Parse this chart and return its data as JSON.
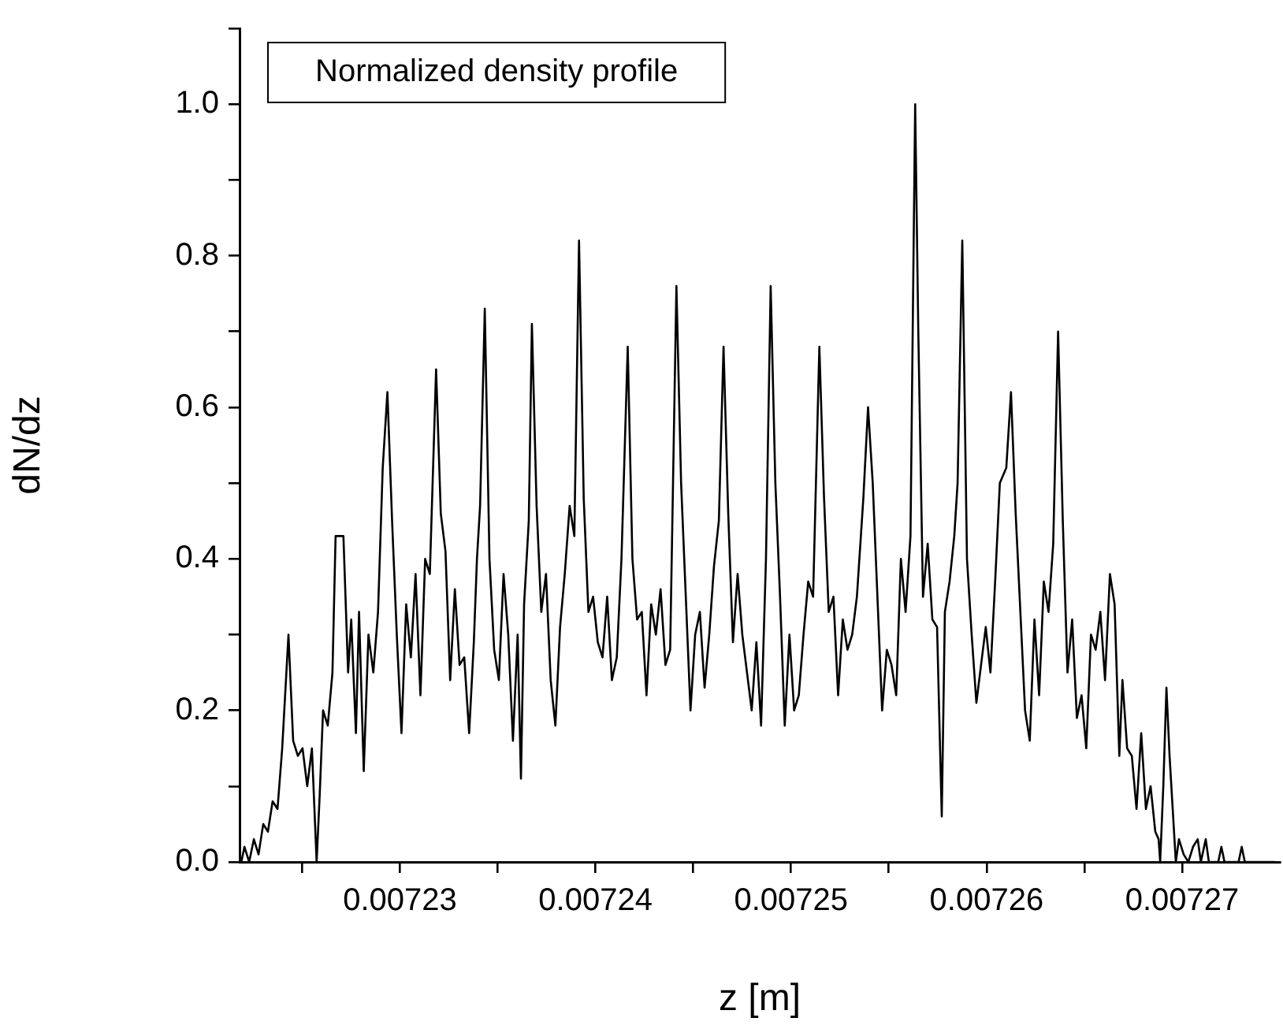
{
  "chart_data": {
    "type": "line",
    "xlabel": "z [m]",
    "ylabel": "dN/dz",
    "legend": "top left",
    "marker": "none",
    "line_style": "solid",
    "grid": false,
    "xlim": [
      0.0072218,
      0.007275
    ],
    "xticks": [
      {
        "value": 0.007225,
        "label": null
      },
      0.00723,
      {
        "value": 0.007235,
        "label": null
      },
      0.00724,
      {
        "value": 0.007245,
        "label": null
      },
      0.00725,
      {
        "value": 0.007255,
        "label": null
      },
      0.00726,
      {
        "value": 0.007265,
        "label": null
      },
      0.00727
    ],
    "ylim": [
      0,
      1.1
    ],
    "yticks": [
      {
        "value": 0,
        "label": "0.0"
      },
      {
        "value": 0.1,
        "label": null
      },
      {
        "value": 0.2,
        "label": "0.2"
      },
      {
        "value": 0.3,
        "label": null
      },
      {
        "value": 0.4,
        "label": "0.4"
      },
      {
        "value": 0.5,
        "label": null
      },
      {
        "value": 0.6,
        "label": "0.6"
      },
      {
        "value": 0.7,
        "label": null
      },
      {
        "value": 0.8,
        "label": "0.8"
      },
      {
        "value": 0.9,
        "label": null
      },
      {
        "value": 1,
        "label": "1.0"
      },
      {
        "value": 1.1,
        "label": null
      }
    ],
    "series": [
      {
        "name": "Normalized density profile",
        "color": "#000000",
        "x": [
          0.00722189,
          0.00722205,
          0.00722229,
          0.00722253,
          0.00722277,
          0.00722301,
          0.00722325,
          0.00722349,
          0.00722374,
          0.00722398,
          0.0072243,
          0.00722454,
          0.00722478,
          0.00722502,
          0.00722526,
          0.0072255,
          0.00722574,
          0.0072259,
          0.00722607,
          0.00722631,
          0.00722655,
          0.00722671,
          0.00722711,
          0.00722735,
          0.00722751,
          0.00722775,
          0.00722791,
          0.00722815,
          0.00722839,
          0.00722864,
          0.00722888,
          0.00722912,
          0.00722936,
          0.0072296,
          0.00722984,
          0.00723008,
          0.00723032,
          0.00723056,
          0.0072308,
          0.00723105,
          0.00723129,
          0.00723153,
          0.00723185,
          0.00723209,
          0.00723233,
          0.00723257,
          0.00723281,
          0.00723305,
          0.00723329,
          0.00723354,
          0.00723378,
          0.00723394,
          0.0072341,
          0.00723434,
          0.00723458,
          0.00723482,
          0.00723506,
          0.0072353,
          0.00723554,
          0.00723578,
          0.00723602,
          0.00723619,
          0.00723635,
          0.00723659,
          0.00723675,
          0.00723699,
          0.00723723,
          0.00723747,
          0.00723771,
          0.00723795,
          0.00723819,
          0.00723843,
          0.00723868,
          0.00723892,
          0.00723916,
          0.0072394,
          0.00723964,
          0.00723988,
          0.00724012,
          0.00724036,
          0.0072406,
          0.00724084,
          0.00724109,
          0.00724133,
          0.00724165,
          0.00724189,
          0.00724213,
          0.00724237,
          0.00724261,
          0.00724285,
          0.00724309,
          0.00724333,
          0.00724358,
          0.00724382,
          0.00724414,
          0.00724438,
          0.00724462,
          0.00724486,
          0.0072451,
          0.00724534,
          0.00724558,
          0.00724582,
          0.00724606,
          0.00724631,
          0.00724655,
          0.00724679,
          0.00724703,
          0.00724727,
          0.00724751,
          0.00724775,
          0.00724799,
          0.00724823,
          0.00724847,
          0.00724872,
          0.00724896,
          0.0072492,
          0.00724944,
          0.00724968,
          0.00724992,
          0.00725016,
          0.0072504,
          0.00725064,
          0.00725088,
          0.00725113,
          0.00725145,
          0.00725169,
          0.00725193,
          0.00725217,
          0.00725241,
          0.00725265,
          0.00725289,
          0.00725313,
          0.00725337,
          0.0072537,
          0.00725394,
          0.00725418,
          0.00725442,
          0.00725466,
          0.0072549,
          0.00725514,
          0.00725538,
          0.00725562,
          0.00725586,
          0.00725611,
          0.00725635,
          0.00725651,
          0.00725675,
          0.00725699,
          0.00725723,
          0.00725747,
          0.00725771,
          0.00725787,
          0.00725811,
          0.00725835,
          0.00725852,
          0.00725876,
          0.007259,
          0.00725924,
          0.00725948,
          0.00725972,
          0.00725996,
          0.0072602,
          0.00726044,
          0.00726068,
          0.00726101,
          0.00726125,
          0.00726149,
          0.00726173,
          0.00726197,
          0.00726221,
          0.00726245,
          0.00726269,
          0.00726293,
          0.00726317,
          0.00726341,
          0.00726366,
          0.0072639,
          0.00726414,
          0.00726438,
          0.00726462,
          0.00726486,
          0.0072651,
          0.00726534,
          0.00726558,
          0.00726582,
          0.00726606,
          0.00726631,
          0.00726655,
          0.00726679,
          0.00726695,
          0.00726719,
          0.00726743,
          0.00726767,
          0.00726791,
          0.00726815,
          0.00726839,
          0.00726863,
          0.0072688,
          0.00726888,
          0.00726904,
          0.0072692,
          0.00726936,
          0.00726952,
          0.00726968,
          0.00726984,
          0.00727008,
          0.00727032,
          0.00727056,
          0.0072708,
          0.00727096,
          0.00727121,
          0.00727137,
          0.00727185,
          0.00727201,
          0.00727217,
          0.00727289,
          0.00727305,
          0.00727321,
          0.00727474
        ],
        "values": [
          0,
          0.02,
          0,
          0.03,
          0.01,
          0.05,
          0.04,
          0.08,
          0.07,
          0.15,
          0.3,
          0.16,
          0.14,
          0.15,
          0.1,
          0.15,
          0,
          0.09,
          0.2,
          0.18,
          0.25,
          0.43,
          0.43,
          0.25,
          0.32,
          0.17,
          0.33,
          0.12,
          0.3,
          0.25,
          0.33,
          0.52,
          0.62,
          0.45,
          0.3,
          0.17,
          0.34,
          0.27,
          0.38,
          0.22,
          0.4,
          0.38,
          0.65,
          0.46,
          0.41,
          0.24,
          0.36,
          0.26,
          0.27,
          0.17,
          0.29,
          0.4,
          0.47,
          0.73,
          0.4,
          0.28,
          0.24,
          0.38,
          0.3,
          0.16,
          0.3,
          0.11,
          0.34,
          0.45,
          0.71,
          0.47,
          0.33,
          0.38,
          0.24,
          0.18,
          0.31,
          0.38,
          0.47,
          0.43,
          0.82,
          0.48,
          0.33,
          0.35,
          0.29,
          0.27,
          0.35,
          0.24,
          0.27,
          0.4,
          0.68,
          0.4,
          0.32,
          0.33,
          0.22,
          0.34,
          0.3,
          0.36,
          0.26,
          0.28,
          0.76,
          0.5,
          0.35,
          0.2,
          0.3,
          0.33,
          0.23,
          0.3,
          0.39,
          0.45,
          0.68,
          0.46,
          0.29,
          0.38,
          0.3,
          0.25,
          0.2,
          0.29,
          0.18,
          0.4,
          0.76,
          0.5,
          0.35,
          0.18,
          0.3,
          0.2,
          0.22,
          0.3,
          0.37,
          0.35,
          0.68,
          0.48,
          0.33,
          0.35,
          0.22,
          0.32,
          0.28,
          0.3,
          0.35,
          0.48,
          0.6,
          0.5,
          0.35,
          0.2,
          0.28,
          0.26,
          0.22,
          0.4,
          0.33,
          0.43,
          1,
          0.7,
          0.35,
          0.42,
          0.32,
          0.31,
          0.06,
          0.33,
          0.37,
          0.43,
          0.5,
          0.82,
          0.4,
          0.3,
          0.21,
          0.26,
          0.31,
          0.25,
          0.37,
          0.5,
          0.52,
          0.62,
          0.46,
          0.33,
          0.2,
          0.16,
          0.32,
          0.22,
          0.37,
          0.33,
          0.42,
          0.7,
          0.45,
          0.25,
          0.32,
          0.19,
          0.22,
          0.15,
          0.3,
          0.28,
          0.33,
          0.24,
          0.38,
          0.34,
          0.14,
          0.24,
          0.15,
          0.14,
          0.07,
          0.17,
          0.07,
          0.1,
          0.04,
          0.03,
          0,
          0.1,
          0.23,
          0.14,
          0.07,
          0,
          0.03,
          0.01,
          0,
          0.02,
          0.03,
          0,
          0.03,
          0,
          0,
          0.02,
          0,
          0,
          0.02,
          0,
          0
        ]
      }
    ]
  }
}
